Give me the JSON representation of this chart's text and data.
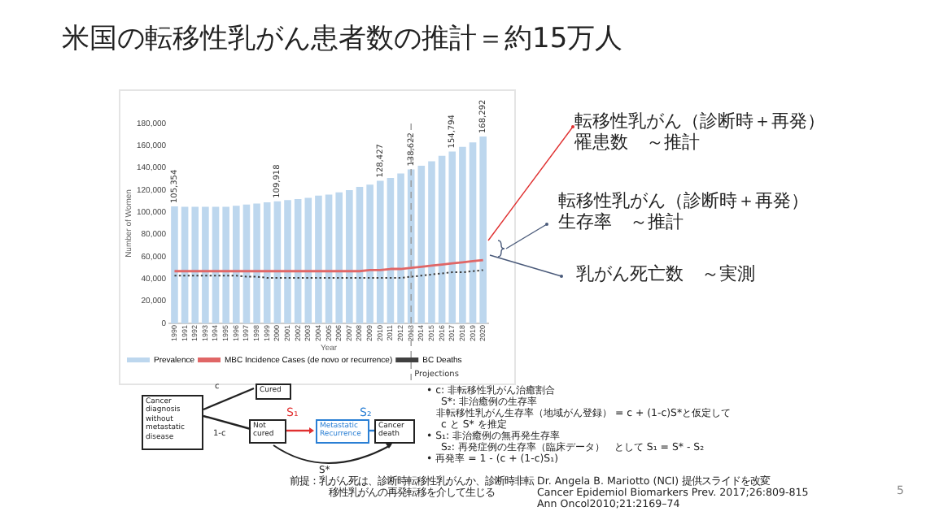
{
  "chart_data": {
    "type": "bar",
    "title": "米国の転移性乳がん患者数の推計＝約15万人",
    "xlabel": "Year",
    "ylabel": "Number of Women",
    "categories": [
      "1990",
      "1991",
      "1992",
      "1993",
      "1994",
      "1995",
      "1996",
      "1997",
      "1998",
      "1999",
      "2000",
      "2001",
      "2002",
      "2003",
      "2004",
      "2005",
      "2006",
      "2007",
      "2008",
      "2009",
      "2010",
      "2011",
      "2012",
      "2013",
      "2014",
      "2015",
      "2016",
      "2017",
      "2018",
      "2019",
      "2020"
    ],
    "series": [
      {
        "name": "Prevalence",
        "color": "#bdd7ee",
        "values": [
          105354,
          105000,
          105000,
          105000,
          105000,
          105000,
          106000,
          107000,
          108000,
          109000,
          109918,
          111000,
          112000,
          113000,
          115000,
          116000,
          118000,
          120000,
          123000,
          125000,
          128427,
          131000,
          135000,
          138622,
          142000,
          146000,
          151000,
          154794,
          159000,
          163000,
          168292
        ],
        "value_labels": [
          "105,354",
          null,
          null,
          null,
          null,
          null,
          null,
          null,
          null,
          null,
          "109,918",
          null,
          null,
          null,
          null,
          null,
          null,
          null,
          null,
          null,
          "128,427",
          null,
          null,
          "138,622",
          null,
          null,
          null,
          "154,794",
          null,
          null,
          "168,292"
        ]
      },
      {
        "name": "MBC Incidence Cases (de novo or recurrence)",
        "type": "line",
        "color": "#e06666",
        "line_style": "solid",
        "values": [
          47000,
          47000,
          47000,
          47000,
          47000,
          47000,
          47000,
          47000,
          47000,
          47000,
          47000,
          47000,
          47000,
          47000,
          47000,
          47000,
          47000,
          47000,
          47000,
          48000,
          48000,
          49000,
          49000,
          50000,
          51000,
          52000,
          53000,
          54000,
          55000,
          56000,
          57000
        ]
      },
      {
        "name": "BC Deaths",
        "type": "line",
        "color": "#404040",
        "line_style": "dotted",
        "values": [
          43000,
          43000,
          43000,
          43000,
          43000,
          43000,
          43000,
          42000,
          42000,
          41000,
          41000,
          41000,
          41000,
          41000,
          41000,
          41000,
          41000,
          41000,
          41000,
          41000,
          41000,
          41000,
          41000,
          42000,
          43000,
          44000,
          45000,
          46000,
          46000,
          47000,
          48000
        ]
      }
    ],
    "ylim": [
      0,
      180000
    ],
    "yticks": [
      {
        "value": 0,
        "label": "0"
      },
      {
        "value": 20000,
        "label": "20,000"
      },
      {
        "value": 40000,
        "label": "40,000"
      },
      {
        "value": 60000,
        "label": "60,000"
      },
      {
        "value": 80000,
        "label": "80,000"
      },
      {
        "value": 100000,
        "label": "100,000"
      },
      {
        "value": 120000,
        "label": "120,000"
      },
      {
        "value": 140000,
        "label": "140,000"
      },
      {
        "value": 160000,
        "label": "160,000"
      },
      {
        "value": 180000,
        "label": "180,000"
      }
    ],
    "grid": false,
    "legend": "bottom left",
    "marker": "none",
    "ref_lines": [
      {
        "axis": "x",
        "value": "2013",
        "label": "Projections",
        "color": "#999999",
        "line_style": "dashed"
      }
    ],
    "annotations": [
      "転移性乳がん（診断時＋再発）罹患数　～推計",
      "転移性乳がん（診断時＋再発）生存率　～推計",
      "乳がん死亡数　～実測",
      "Cancer diagnosis without metastatic disease",
      "Cured",
      "Not cured",
      "Metastatic Recurrence",
      "Cancer death",
      "c",
      "1-c",
      "S₁",
      "S₂",
      "S*",
      "• c: 非転移性乳がん治癒割合",
      "S*: 非治癒例の生存率",
      "非転移性乳がん生存率（地域がん登録） = c + (1-c)S*と仮定して",
      "c と S* を推定",
      "• S₁: 非治癒例の無再発生存率",
      "S₂: 再発症例の生存率（臨床データ）　として S₁ = S* - S₂",
      "• 再発率 = 1 - (c + (1-c)S₁)",
      "前提：乳がん死は、診断時転移性乳がんか、診断時非転移性乳がんの再発転移を介して生じる",
      "Dr. Angela B. Mariotto (NCI) 提供スライドを改変\nCancer Epidemiol Biomarkers Prev. 2017;26:809-815\nAnn Oncol2010;21:2169–74",
      "5"
    ]
  }
}
